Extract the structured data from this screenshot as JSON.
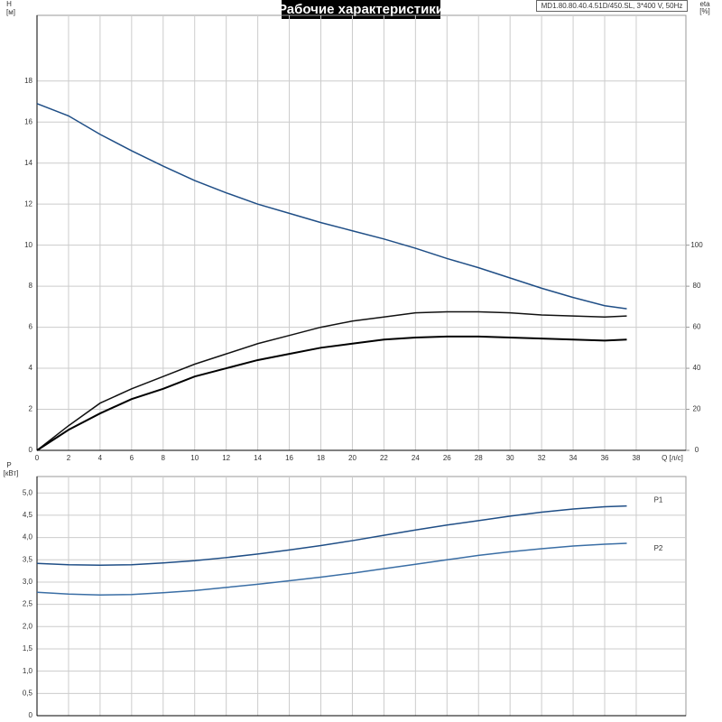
{
  "title": "Рабочие характеристики",
  "model": "MD1.80.80.40.4.51D/450.SL, 3*400 V, 50Hz",
  "chart_data": [
    {
      "type": "line",
      "ylabel": [
        "H",
        "[м]"
      ],
      "y2label": [
        "eta",
        "[%]"
      ],
      "xlabel": "Q [л/с]",
      "xlim": [
        0,
        41.15
      ],
      "xticks": [
        0,
        2,
        4,
        6,
        8,
        10,
        12,
        14,
        16,
        18,
        20,
        22,
        24,
        26,
        28,
        30,
        32,
        34,
        36,
        38
      ],
      "ylim": [
        0,
        21.2
      ],
      "yticks": [
        0,
        2,
        4,
        6,
        8,
        10,
        12,
        14,
        16,
        18
      ],
      "y2lim": [
        0,
        212
      ],
      "y2ticks": [
        0,
        20,
        40,
        60,
        80,
        100
      ],
      "grid": true,
      "x": [
        0,
        2,
        4,
        6,
        8,
        10,
        12,
        14,
        16,
        18,
        20,
        22,
        24,
        26,
        28,
        30,
        32,
        34,
        36,
        37.4
      ],
      "series": [
        {
          "color": "#1f4e86",
          "values": [
            16.9,
            16.3,
            15.4,
            14.6,
            13.85,
            13.15,
            12.55,
            12.0,
            11.55,
            11.1,
            10.7,
            10.3,
            9.85,
            9.35,
            8.9,
            8.4,
            7.9,
            7.45,
            7.05,
            6.9
          ]
        },
        {
          "color": "#111111",
          "axis": "y2",
          "values": [
            0,
            12,
            23,
            30,
            36,
            42,
            47,
            52,
            56,
            60,
            63,
            65,
            67,
            67.5,
            67.5,
            67,
            66,
            65.5,
            65,
            65.5
          ]
        },
        {
          "color": "#000000",
          "axis": "y2",
          "values": [
            0,
            10,
            18,
            25,
            30,
            36,
            40,
            44,
            47,
            50,
            52,
            54,
            55,
            55.5,
            55.5,
            55,
            54.5,
            54,
            53.5,
            54
          ]
        }
      ]
    },
    {
      "type": "line",
      "ylabel": [
        "P",
        "[кВт]"
      ],
      "xlim": [
        0,
        41.15
      ],
      "xticks": [
        0,
        2,
        4,
        6,
        8,
        10,
        12,
        14,
        16,
        18,
        20,
        22,
        24,
        26,
        28,
        30,
        32,
        34,
        36,
        38
      ],
      "ylim": [
        0,
        5.37
      ],
      "yticks": [
        0,
        {
          "value": 0.5,
          "label": "0,5"
        },
        {
          "value": 1,
          "label": "1,0"
        },
        {
          "value": 1.5,
          "label": "1,5"
        },
        {
          "value": 2,
          "label": "2,0"
        },
        {
          "value": 2.5,
          "label": "2,5"
        },
        {
          "value": 3,
          "label": "3,0"
        },
        {
          "value": 3.5,
          "label": "3,5"
        },
        {
          "value": 4,
          "label": "4,0"
        },
        {
          "value": 4.5,
          "label": "4,5"
        },
        {
          "value": 5,
          "label": "5,0"
        }
      ],
      "grid": true,
      "x": [
        0,
        2,
        4,
        6,
        8,
        10,
        12,
        14,
        16,
        18,
        20,
        22,
        24,
        26,
        28,
        30,
        32,
        34,
        36,
        37.4
      ],
      "series": [
        {
          "name": "P1",
          "color": "#1f4e86",
          "values": [
            3.42,
            3.39,
            3.38,
            3.39,
            3.43,
            3.48,
            3.55,
            3.63,
            3.72,
            3.82,
            3.93,
            4.05,
            4.17,
            4.28,
            4.38,
            4.48,
            4.57,
            4.64,
            4.69,
            4.71
          ]
        },
        {
          "name": "P2",
          "color": "#3a6ea5",
          "values": [
            2.77,
            2.73,
            2.71,
            2.72,
            2.76,
            2.81,
            2.88,
            2.95,
            3.03,
            3.11,
            3.2,
            3.3,
            3.4,
            3.5,
            3.6,
            3.68,
            3.75,
            3.81,
            3.85,
            3.87
          ]
        }
      ]
    }
  ]
}
